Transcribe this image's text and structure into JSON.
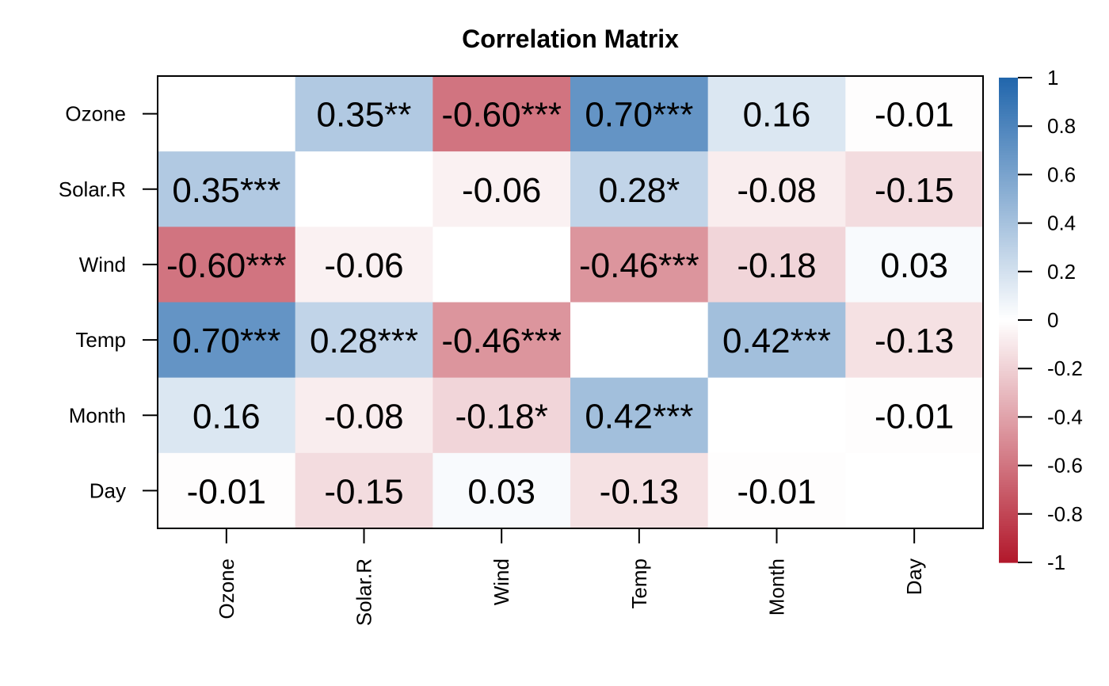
{
  "chart_data": {
    "type": "heatmap",
    "title": "Correlation Matrix",
    "variables": [
      "Ozone",
      "Solar.R",
      "Wind",
      "Temp",
      "Month",
      "Day"
    ],
    "values": [
      [
        null,
        0.35,
        -0.6,
        0.7,
        0.16,
        -0.01
      ],
      [
        0.35,
        null,
        -0.06,
        0.28,
        -0.08,
        -0.15
      ],
      [
        -0.6,
        -0.06,
        null,
        -0.46,
        -0.18,
        0.03
      ],
      [
        0.7,
        0.28,
        -0.46,
        null,
        0.42,
        -0.13
      ],
      [
        0.16,
        -0.08,
        -0.18,
        0.42,
        null,
        -0.01
      ],
      [
        -0.01,
        -0.15,
        0.03,
        -0.13,
        -0.01,
        null
      ]
    ],
    "labels": [
      [
        "",
        "0.35**",
        "-0.60***",
        "0.70***",
        "0.16",
        "-0.01"
      ],
      [
        "0.35***",
        "",
        "-0.06",
        "0.28*",
        "-0.08",
        "-0.15"
      ],
      [
        "-0.60***",
        "-0.06",
        "",
        "-0.46***",
        "-0.18",
        "0.03"
      ],
      [
        "0.70***",
        "0.28***",
        "-0.46***",
        "",
        "0.42***",
        "-0.13"
      ],
      [
        "0.16",
        "-0.08",
        "-0.18*",
        "0.42***",
        "",
        "-0.01"
      ],
      [
        "-0.01",
        "-0.15",
        "0.03",
        "-0.13",
        "-0.01",
        ""
      ]
    ],
    "colorbar": {
      "range": [
        -1,
        1
      ],
      "ticks": [
        1,
        0.8,
        0.6,
        0.4,
        0.2,
        0,
        -0.2,
        -0.4,
        -0.6,
        -0.8,
        -1
      ],
      "tick_labels": [
        "1",
        "0.8",
        "0.6",
        "0.4",
        "0.2",
        "0",
        "-0.2",
        "-0.4",
        "-0.6",
        "-0.8",
        "-1"
      ],
      "colors": {
        "negative": "#b2182b",
        "zero": "#ffffff",
        "positive": "#2166ac"
      }
    },
    "grid": false,
    "legend": "right"
  }
}
